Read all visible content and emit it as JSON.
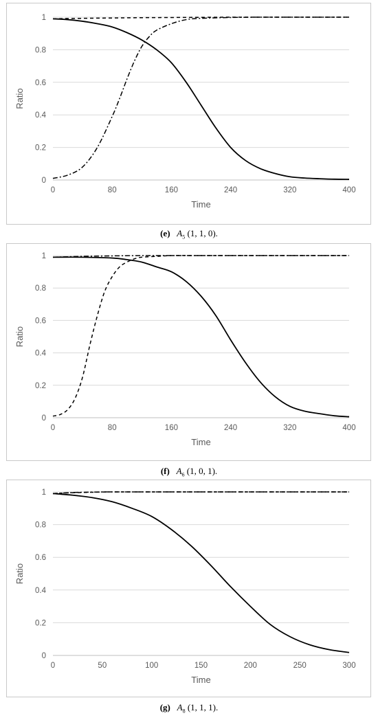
{
  "chart_data": [
    {
      "type": "line",
      "caption": {
        "label": "(e)",
        "symbol": "A",
        "sub": "5",
        "args": "(1, 1, 0)."
      },
      "xlabel": "Time",
      "ylabel": "Ratio",
      "xlim": [
        0,
        400
      ],
      "ylim": [
        0,
        1
      ],
      "xticks": [
        "0",
        "80",
        "160",
        "240",
        "320",
        "400"
      ],
      "yticks": [
        "0",
        "0.2",
        "0.4",
        "0.6",
        "0.8",
        "1"
      ],
      "grid": "horizontal",
      "series": [
        {
          "style": "dashed",
          "x": [
            0,
            40,
            80,
            120,
            160,
            200,
            240,
            280,
            320,
            360,
            400
          ],
          "y": [
            0.99,
            0.993,
            0.995,
            0.997,
            0.998,
            0.999,
            1.0,
            1.0,
            1.0,
            1.0,
            1.0
          ]
        },
        {
          "style": "solid",
          "x": [
            0,
            20,
            40,
            60,
            80,
            100,
            120,
            140,
            160,
            180,
            200,
            220,
            240,
            260,
            280,
            300,
            320,
            340,
            360,
            380,
            400
          ],
          "y": [
            0.99,
            0.985,
            0.975,
            0.96,
            0.94,
            0.905,
            0.86,
            0.8,
            0.72,
            0.6,
            0.46,
            0.32,
            0.2,
            0.12,
            0.07,
            0.04,
            0.02,
            0.012,
            0.008,
            0.005,
            0.004
          ]
        },
        {
          "style": "dashdot",
          "x": [
            0,
            20,
            40,
            60,
            80,
            90,
            100,
            110,
            120,
            130,
            140,
            160,
            180,
            200,
            240,
            280,
            320,
            360,
            400
          ],
          "y": [
            0.01,
            0.03,
            0.08,
            0.2,
            0.39,
            0.5,
            0.62,
            0.73,
            0.82,
            0.88,
            0.92,
            0.96,
            0.985,
            0.993,
            0.998,
            1.0,
            1.0,
            1.0,
            1.0
          ]
        }
      ]
    },
    {
      "type": "line",
      "caption": {
        "label": "(f)",
        "symbol": "A",
        "sub": "6",
        "args": "(1, 0, 1)."
      },
      "xlabel": "Time",
      "ylabel": "Ratio",
      "xlim": [
        0,
        400
      ],
      "ylim": [
        0,
        1
      ],
      "xticks": [
        "0",
        "80",
        "160",
        "240",
        "320",
        "400"
      ],
      "yticks": [
        "0",
        "0.2",
        "0.4",
        "0.6",
        "0.8",
        "1"
      ],
      "grid": "horizontal",
      "series": [
        {
          "style": "dashdot",
          "x": [
            0,
            40,
            80,
            120,
            160,
            200,
            240,
            280,
            320,
            360,
            400
          ],
          "y": [
            0.99,
            0.995,
            0.998,
            1.0,
            1.0,
            1.0,
            1.0,
            1.0,
            1.0,
            1.0,
            1.0
          ]
        },
        {
          "style": "solid",
          "x": [
            0,
            40,
            80,
            100,
            120,
            140,
            160,
            180,
            200,
            220,
            240,
            260,
            280,
            300,
            320,
            340,
            360,
            380,
            400
          ],
          "y": [
            0.99,
            0.99,
            0.985,
            0.975,
            0.96,
            0.93,
            0.9,
            0.84,
            0.75,
            0.63,
            0.48,
            0.34,
            0.22,
            0.13,
            0.07,
            0.04,
            0.025,
            0.012,
            0.006
          ]
        },
        {
          "style": "dashed",
          "x": [
            0,
            10,
            20,
            30,
            40,
            50,
            60,
            70,
            80,
            90,
            100,
            110,
            120,
            140,
            160,
            200,
            240,
            320,
            400
          ],
          "y": [
            0.01,
            0.02,
            0.05,
            0.12,
            0.25,
            0.45,
            0.63,
            0.78,
            0.87,
            0.93,
            0.96,
            0.98,
            0.99,
            0.995,
            1.0,
            1.0,
            1.0,
            1.0,
            1.0
          ]
        }
      ]
    },
    {
      "type": "line",
      "caption": {
        "label": "(g)",
        "symbol": "A",
        "sub": "8",
        "args": "(1, 1, 1)."
      },
      "xlabel": "Time",
      "ylabel": "Ratio",
      "xlim": [
        0,
        300
      ],
      "ylim": [
        0,
        1
      ],
      "xticks": [
        "0",
        "50",
        "100",
        "150",
        "200",
        "250",
        "300"
      ],
      "yticks": [
        "0",
        "0.2",
        "0.4",
        "0.6",
        "0.8",
        "1"
      ],
      "grid": "horizontal",
      "series": [
        {
          "style": "dashed",
          "x": [
            0,
            20,
            40,
            60,
            100,
            150,
            200,
            250,
            300
          ],
          "y": [
            0.99,
            0.995,
            0.998,
            1.0,
            1.0,
            1.0,
            1.0,
            1.0,
            1.0
          ]
        },
        {
          "style": "dashdot",
          "x": [
            0,
            20,
            40,
            60,
            100,
            150,
            200,
            250,
            300
          ],
          "y": [
            0.99,
            0.996,
            0.999,
            1.0,
            1.0,
            1.0,
            1.0,
            1.0,
            1.0
          ]
        },
        {
          "style": "solid",
          "x": [
            0,
            20,
            40,
            60,
            80,
            100,
            120,
            140,
            160,
            180,
            200,
            220,
            240,
            260,
            280,
            300
          ],
          "y": [
            0.99,
            0.98,
            0.965,
            0.94,
            0.9,
            0.85,
            0.77,
            0.67,
            0.55,
            0.42,
            0.3,
            0.19,
            0.115,
            0.065,
            0.035,
            0.018
          ]
        }
      ]
    }
  ]
}
